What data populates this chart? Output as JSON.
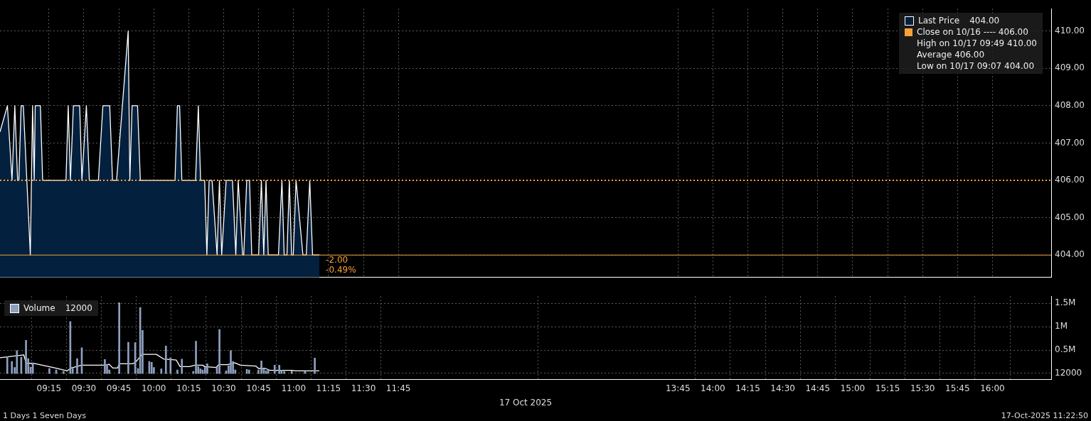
{
  "chart_data": [
    {
      "type": "area",
      "xlim": [
        8.9,
        16.42
      ],
      "xticks": [
        {
          "value": 9.25,
          "label": null
        },
        {
          "value": 9.5,
          "label": null
        },
        {
          "value": 9.75,
          "label": null
        },
        {
          "value": 10,
          "label": null
        },
        {
          "value": 10.25,
          "label": null
        },
        {
          "value": 10.5,
          "label": null
        },
        {
          "value": 10.75,
          "label": null
        },
        {
          "value": 11,
          "label": null
        },
        {
          "value": 11.25,
          "label": null
        },
        {
          "value": 11.5,
          "label": null
        },
        {
          "value": 11.75,
          "label": null
        },
        {
          "value": 13.75,
          "label": null
        },
        {
          "value": 14,
          "label": null
        },
        {
          "value": 14.25,
          "label": null
        },
        {
          "value": 14.5,
          "label": null
        },
        {
          "value": 14.75,
          "label": null
        },
        {
          "value": 15,
          "label": null
        },
        {
          "value": 15.25,
          "label": null
        },
        {
          "value": 15.5,
          "label": null
        },
        {
          "value": 15.75,
          "label": null
        },
        {
          "value": 16,
          "label": null
        }
      ],
      "ylim": [
        403.4,
        410.6
      ],
      "yticks": [
        {
          "value": 404,
          "label": "404.00"
        },
        {
          "value": 405,
          "label": "405.00"
        },
        {
          "value": 406,
          "label": "406.00"
        },
        {
          "value": 407,
          "label": "407.00"
        },
        {
          "value": 408,
          "label": "408.00"
        },
        {
          "value": 409,
          "label": "409.00"
        },
        {
          "value": 410,
          "label": "410.00"
        }
      ],
      "tick_labels": "y",
      "grid": true,
      "legend": "top right",
      "marker": "none",
      "line_style": "solid",
      "series": [
        {
          "name": "Last Price",
          "color": "#03203f",
          "x": [
            8.9,
            8.953,
            8.986,
            9.006,
            9.026,
            9.035,
            9.051,
            9.067,
            9.117,
            9.133,
            9.145,
            9.152,
            9.189,
            9.205,
            9.372,
            9.388,
            9.404,
            9.425,
            9.47,
            9.486,
            9.518,
            9.539,
            9.604,
            9.636,
            9.685,
            9.705,
            9.734,
            9.817,
            9.829,
            9.845,
            9.884,
            9.904,
            10.152,
            10.169,
            10.185,
            10.201,
            10.299,
            10.319,
            10.335,
            10.364,
            10.38,
            10.396,
            10.417,
            10.453,
            10.47,
            10.486,
            10.518,
            10.563,
            10.587,
            10.604,
            10.636,
            10.644,
            10.665,
            10.685,
            10.701,
            10.75,
            10.77,
            10.787,
            10.803,
            10.819,
            10.892,
            10.917,
            10.933,
            10.953,
            10.97,
            10.986,
            10.998,
            11.018,
            11.067,
            11.091,
            11.116,
            11.136,
            11.185
          ],
          "values": [
            407.3,
            408,
            406,
            408,
            406,
            406,
            408,
            408,
            404,
            408,
            406,
            408,
            408,
            406,
            406,
            408,
            406,
            408,
            408,
            406,
            408,
            406,
            406,
            408,
            408,
            406,
            406,
            410,
            406,
            408,
            408,
            406,
            406,
            408,
            408,
            406,
            406,
            408,
            406,
            406,
            404,
            406,
            406,
            404,
            406,
            404,
            406,
            406,
            404,
            406,
            404,
            404,
            406,
            406,
            404,
            404,
            406,
            404,
            406,
            404,
            404,
            406,
            404,
            404,
            406,
            404,
            404,
            406,
            404,
            404,
            406,
            404,
            404
          ]
        }
      ],
      "ref_lines": [
        {
          "axis": "y",
          "value": 406,
          "label": "Close on 10/16 ---- 406.00",
          "color": "#f7a13a",
          "line_style": "dotted"
        },
        {
          "axis": "y",
          "value": 404,
          "color": "#f7a13a",
          "line_style": "solid"
        }
      ],
      "annotations": [
        "404.00",
        "High on 10/17 09:49 410.00",
        "Average 406.00",
        "Low on 10/17 09:07 404.00",
        {
          "text": "-2.00",
          "x": 11.185,
          "y": 404
        },
        {
          "text": "-0.49%",
          "x": 11.185,
          "y": 404
        }
      ]
    },
    {
      "type": "bar",
      "xlim": [
        8.9,
        16.42
      ],
      "xticks": [
        {
          "value": 9.25,
          "label": "09:15"
        },
        {
          "value": 9.5,
          "label": "09:30"
        },
        {
          "value": 9.75,
          "label": "09:45"
        },
        {
          "value": 10,
          "label": "10:00"
        },
        {
          "value": 10.25,
          "label": "10:15"
        },
        {
          "value": 10.5,
          "label": "10:30"
        },
        {
          "value": 10.75,
          "label": "10:45"
        },
        {
          "value": 11,
          "label": "11:00"
        },
        {
          "value": 11.25,
          "label": "11:15"
        },
        {
          "value": 11.5,
          "label": "11:30"
        },
        {
          "value": 11.75,
          "label": "11:45"
        },
        {
          "value": 13.75,
          "label": "13:45"
        },
        {
          "value": 14,
          "label": "14:00"
        },
        {
          "value": 14.25,
          "label": "14:15"
        },
        {
          "value": 14.5,
          "label": "14:30"
        },
        {
          "value": 14.75,
          "label": "14:45"
        },
        {
          "value": 15,
          "label": "15:00"
        },
        {
          "value": 15.25,
          "label": "15:15"
        },
        {
          "value": 15.5,
          "label": "15:30"
        },
        {
          "value": 15.75,
          "label": "15:45"
        },
        {
          "value": 16,
          "label": "16:00"
        }
      ],
      "ylim": [
        -120000,
        1650000
      ],
      "yticks": [
        {
          "value": 12000,
          "label": "12000"
        },
        {
          "value": 500000,
          "label": "0.5M"
        },
        {
          "value": 1000000,
          "label": "1M"
        },
        {
          "value": 1500000,
          "label": "1.5M"
        }
      ],
      "xlabel": "17 Oct 2025",
      "grid": true,
      "legend": "top left",
      "marker": "none",
      "series": [
        {
          "name": "Volume",
          "color": "#8ea0bf",
          "x": [
            8.952,
            8.985,
            9.005,
            9.021,
            9.052,
            9.086,
            9.102,
            9.119,
            9.135,
            9.253,
            9.302,
            9.354,
            9.403,
            9.42,
            9.452,
            9.485,
            9.65,
            9.666,
            9.682,
            9.753,
            9.818,
            9.867,
            9.887,
            9.903,
            9.92,
            9.968,
            9.985,
            10.001,
            10.054,
            10.087,
            10.12,
            10.169,
            10.201,
            10.283,
            10.302,
            10.318,
            10.334,
            10.35,
            10.367,
            10.383,
            10.452,
            10.47,
            10.518,
            10.535,
            10.551,
            10.567,
            10.583,
            10.666,
            10.682,
            10.749,
            10.77,
            10.787,
            10.803,
            10.819,
            10.865,
            10.898,
            10.914,
            10.933,
            10.987,
            11.082,
            11.152
          ],
          "values": [
            360000,
            260000,
            130000,
            490000,
            350000,
            710000,
            320000,
            140000,
            230000,
            110000,
            80000,
            50000,
            1110000,
            110000,
            320000,
            550000,
            300000,
            200000,
            80000,
            1510000,
            670000,
            660000,
            110000,
            1410000,
            920000,
            260000,
            240000,
            130000,
            100000,
            590000,
            330000,
            80000,
            310000,
            50000,
            690000,
            150000,
            100000,
            80000,
            130000,
            210000,
            140000,
            940000,
            60000,
            170000,
            490000,
            260000,
            80000,
            90000,
            80000,
            80000,
            270000,
            110000,
            60000,
            80000,
            180000,
            180000,
            70000,
            50000,
            60000,
            50000,
            330000
          ]
        },
        {
          "type": "line",
          "color": "#ffffff",
          "x": [
            8.9,
            9.07,
            9.087,
            9.137,
            9.28,
            9.381,
            9.409,
            9.483,
            9.646,
            9.68,
            9.707,
            9.741,
            9.754,
            9.849,
            9.869,
            9.917,
            10.018,
            10.072,
            10.12,
            10.161,
            10.188,
            10.255,
            10.296,
            10.35,
            10.364,
            10.445,
            10.465,
            10.526,
            10.58,
            10.621,
            10.73,
            10.75,
            10.798,
            10.831,
            10.987,
            11.014,
            11.184
          ],
          "values": [
            340000,
            400000,
            220000,
            220000,
            130000,
            60000,
            120000,
            180000,
            180000,
            200000,
            120000,
            120000,
            210000,
            210000,
            240000,
            410000,
            410000,
            310000,
            300000,
            290000,
            150000,
            150000,
            180000,
            180000,
            150000,
            130000,
            190000,
            190000,
            230000,
            180000,
            160000,
            110000,
            110000,
            70000,
            70000,
            60000,
            60000
          ]
        }
      ],
      "annotations": [
        "12000",
        "1 Days 1 Seven Days",
        "17-Oct-2025 11:22:50"
      ]
    }
  ]
}
